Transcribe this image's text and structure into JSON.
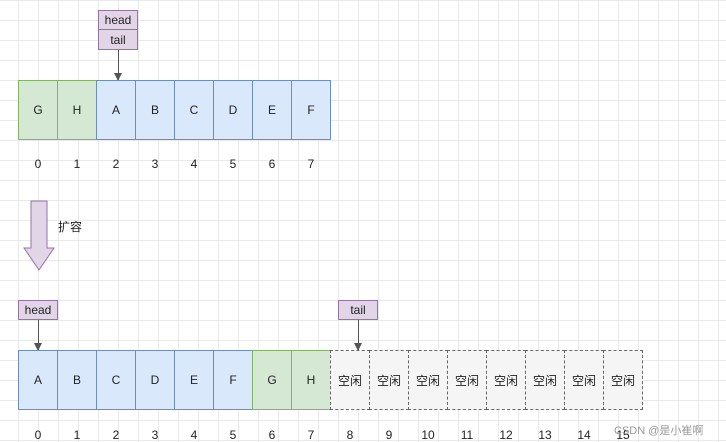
{
  "top": {
    "pointer_labels": [
      "head",
      "tail"
    ],
    "cells": [
      {
        "value": "G",
        "type": "green"
      },
      {
        "value": "H",
        "type": "green"
      },
      {
        "value": "A",
        "type": "blue"
      },
      {
        "value": "B",
        "type": "blue"
      },
      {
        "value": "C",
        "type": "blue"
      },
      {
        "value": "D",
        "type": "blue"
      },
      {
        "value": "E",
        "type": "blue"
      },
      {
        "value": "F",
        "type": "blue"
      }
    ],
    "indices": [
      "0",
      "1",
      "2",
      "3",
      "4",
      "5",
      "6",
      "7"
    ]
  },
  "expand_label": "扩容",
  "bottom": {
    "head_label": "head",
    "tail_label": "tail",
    "cells": [
      {
        "value": "A",
        "type": "blue"
      },
      {
        "value": "B",
        "type": "blue"
      },
      {
        "value": "C",
        "type": "blue"
      },
      {
        "value": "D",
        "type": "blue"
      },
      {
        "value": "E",
        "type": "blue"
      },
      {
        "value": "F",
        "type": "blue"
      },
      {
        "value": "G",
        "type": "green"
      },
      {
        "value": "H",
        "type": "green"
      },
      {
        "value": "空闲",
        "type": "free"
      },
      {
        "value": "空闲",
        "type": "free"
      },
      {
        "value": "空闲",
        "type": "free"
      },
      {
        "value": "空闲",
        "type": "free"
      },
      {
        "value": "空闲",
        "type": "free"
      },
      {
        "value": "空闲",
        "type": "free"
      },
      {
        "value": "空闲",
        "type": "free"
      },
      {
        "value": "空闲",
        "type": "free"
      }
    ],
    "indices": [
      "0",
      "1",
      "2",
      "3",
      "4",
      "5",
      "6",
      "7",
      "8",
      "9",
      "10",
      "11",
      "12",
      "13",
      "14",
      "15"
    ]
  },
  "watermark": "CSDN @是小崔啊",
  "colors": {
    "blue_fill": "#dae8fc",
    "green_fill": "#d5e8d4",
    "free_fill": "#f5f5f5",
    "pointer_fill": "#e1d5e7",
    "expand_arrow_fill": "#e1d5e7"
  }
}
